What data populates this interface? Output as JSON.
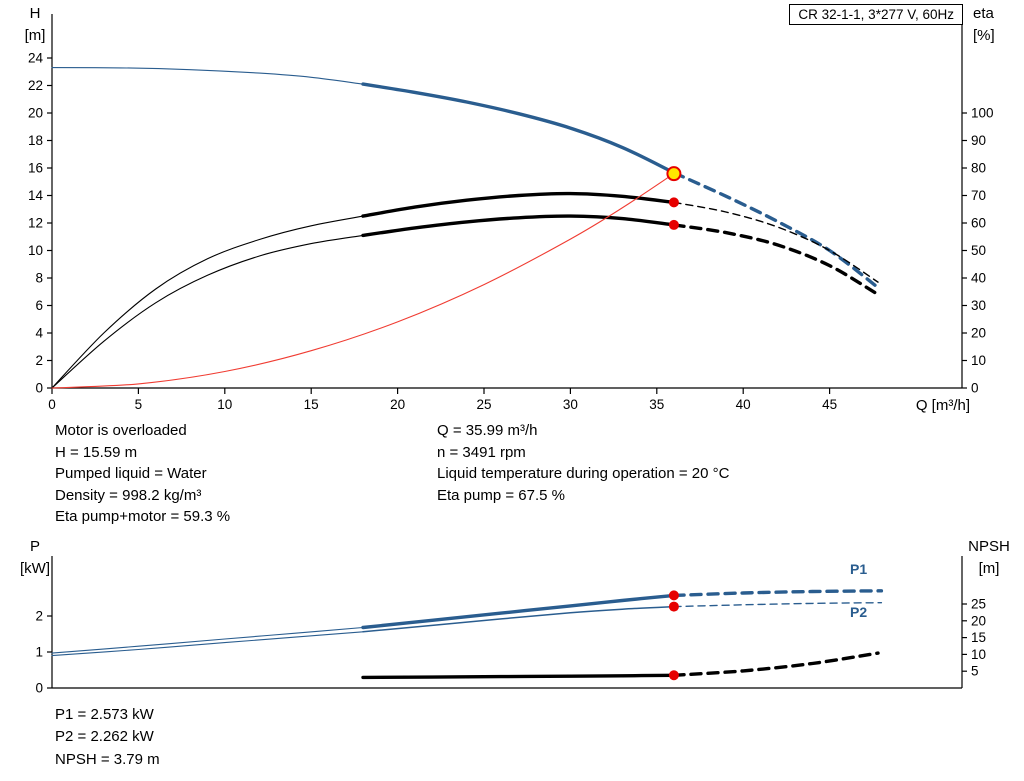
{
  "colors": {
    "pump_curve": "#2a5d8f",
    "eta_curve": "#000000",
    "system_curve": "#f03c32",
    "duty_fill": "#ffe600",
    "duty_ring": "#e60000",
    "dot": "#e60000",
    "axis": "#000000"
  },
  "info_top_left": [
    "Motor is overloaded",
    "H = 15.59 m",
    "Pumped liquid = Water",
    "Density = 998.2 kg/m³",
    "Eta pump+motor = 59.3 %"
  ],
  "info_top_right": [
    "Q = 35.99 m³/h",
    "n = 3491 rpm",
    "Liquid temperature during operation = 20 °C",
    "Eta pump = 67.5 %"
  ],
  "info_bottom": [
    "P1 = 2.573 kW",
    "P2 = 2.262 kW",
    "NPSH = 3.79 m"
  ],
  "chart_data": [
    {
      "name": "hq-eta-chart",
      "type": "line",
      "title": "CR 32-1-1, 3*277 V, 60Hz",
      "grid": false,
      "legend": false,
      "x_axis": {
        "label": "Q [m³/h]",
        "min": 0,
        "max": 52.6,
        "major_ticks": [
          0,
          5,
          10,
          15,
          20,
          25,
          30,
          35,
          40,
          45
        ]
      },
      "y_left": {
        "label": [
          "H",
          "[m]"
        ],
        "min": 0,
        "max": 24,
        "ticks": [
          0,
          2,
          4,
          6,
          8,
          10,
          12,
          14,
          16,
          18,
          20,
          22,
          24
        ]
      },
      "y_right": {
        "label": [
          "eta",
          "[%]"
        ],
        "min": 0,
        "max": 100,
        "ticks": [
          0,
          10,
          20,
          30,
          40,
          50,
          60,
          70,
          80,
          90,
          100
        ]
      },
      "series": [
        {
          "name": "head-curve",
          "axis": "left",
          "color": "#2a5d8f",
          "segments": [
            {
              "style": "thin",
              "points": [
                [
                  0,
                  23.3
                ],
                [
                  4,
                  23.28
                ],
                [
                  8,
                  23.15
                ],
                [
                  12,
                  22.9
                ],
                [
                  15,
                  22.6
                ],
                [
                  18,
                  22.1
                ]
              ]
            },
            {
              "style": "thick",
              "points": [
                [
                  18,
                  22.1
                ],
                [
                  21,
                  21.5
                ],
                [
                  24,
                  20.8
                ],
                [
                  27,
                  19.95
                ],
                [
                  30,
                  18.9
                ],
                [
                  33,
                  17.5
                ],
                [
                  36,
                  15.65
                ]
              ]
            },
            {
              "style": "thick-dashed",
              "points": [
                [
                  36,
                  15.65
                ],
                [
                  39,
                  13.95
                ],
                [
                  42,
                  12.1
                ],
                [
                  45,
                  10.0
                ],
                [
                  47.8,
                  7.3
                ]
              ]
            }
          ]
        },
        {
          "name": "eta-pump-curve",
          "axis": "right",
          "color": "#000000",
          "segments": [
            {
              "style": "thin",
              "points": [
                [
                  0,
                  0
                ],
                [
                  3,
                  20
                ],
                [
                  6,
                  36
                ],
                [
                  9,
                  47
                ],
                [
                  12,
                  54
                ],
                [
                  15,
                  59
                ],
                [
                  18,
                  62.5
                ]
              ]
            },
            {
              "style": "thick",
              "points": [
                [
                  18,
                  62.5
                ],
                [
                  21,
                  65.8
                ],
                [
                  24,
                  68.3
                ],
                [
                  27,
                  70.0
                ],
                [
                  30,
                  70.7
                ],
                [
                  33,
                  69.7
                ],
                [
                  36,
                  67.5
                ]
              ]
            },
            {
              "style": "thin-dashed",
              "points": [
                [
                  36,
                  67.5
                ],
                [
                  39,
                  64
                ],
                [
                  42,
                  58.5
                ],
                [
                  45,
                  50
                ],
                [
                  47.8,
                  38.5
                ]
              ]
            }
          ]
        },
        {
          "name": "eta-pump-motor-curve",
          "axis": "right",
          "color": "#000000",
          "segments": [
            {
              "style": "thin",
              "points": [
                [
                  0,
                  0
                ],
                [
                  3,
                  17
                ],
                [
                  6,
                  31
                ],
                [
                  9,
                  41
                ],
                [
                  12,
                  48
                ],
                [
                  15,
                  52.5
                ],
                [
                  18,
                  55.5
                ]
              ]
            },
            {
              "style": "thick",
              "points": [
                [
                  18,
                  55.5
                ],
                [
                  21,
                  58.2
                ],
                [
                  24,
                  60.4
                ],
                [
                  27,
                  61.9
                ],
                [
                  30,
                  62.5
                ],
                [
                  33,
                  61.6
                ],
                [
                  36,
                  59.3
                ]
              ]
            },
            {
              "style": "thick-dashed",
              "points": [
                [
                  36,
                  59.3
                ],
                [
                  39,
                  56.5
                ],
                [
                  42,
                  52
                ],
                [
                  45,
                  44.5
                ],
                [
                  47.8,
                  34
                ]
              ]
            }
          ]
        },
        {
          "name": "system-curve",
          "axis": "left",
          "color": "#f03c32",
          "segments": [
            {
              "style": "thin",
              "points": [
                [
                  0,
                  0
                ],
                [
                  5,
                  0.3
                ],
                [
                  10,
                  1.2
                ],
                [
                  15,
                  2.71
                ],
                [
                  20,
                  4.81
                ],
                [
                  25,
                  7.52
                ],
                [
                  30,
                  10.83
                ],
                [
                  33,
                  13.1
                ],
                [
                  35.99,
                  15.59
                ]
              ]
            }
          ]
        }
      ],
      "markers": [
        {
          "name": "duty-point",
          "axis": "left",
          "q": 35.99,
          "value": 15.59,
          "kind": "duty"
        },
        {
          "name": "eta-pump-point",
          "axis": "right",
          "q": 35.99,
          "value": 67.5,
          "kind": "dot"
        },
        {
          "name": "eta-total-point",
          "axis": "right",
          "q": 35.99,
          "value": 59.3,
          "kind": "dot"
        }
      ]
    },
    {
      "name": "power-npsh-chart",
      "type": "line",
      "grid": false,
      "legend": false,
      "x_axis": {
        "label": "",
        "min": 0,
        "max": 52.6,
        "major_ticks": []
      },
      "y_left": {
        "label": [
          "P",
          "[kW]"
        ],
        "min": 0,
        "max": 3.6,
        "ticks": [
          0,
          1,
          2
        ]
      },
      "y_right": {
        "label": [
          "NPSH",
          "[m]"
        ],
        "min": 0,
        "max": 39,
        "ticks": [
          5,
          10,
          15,
          20,
          25
        ]
      },
      "series": [
        {
          "name": "p1-curve",
          "axis": "left",
          "color": "#2a5d8f",
          "label": "P1",
          "segments": [
            {
              "style": "thin",
              "points": [
                [
                  0,
                  0.97
                ],
                [
                  5,
                  1.16
                ],
                [
                  10,
                  1.36
                ],
                [
                  14,
                  1.52
                ],
                [
                  18,
                  1.68
                ]
              ]
            },
            {
              "style": "thick",
              "points": [
                [
                  18,
                  1.68
                ],
                [
                  22,
                  1.88
                ],
                [
                  26,
                  2.08
                ],
                [
                  30,
                  2.28
                ],
                [
                  33,
                  2.43
                ],
                [
                  36,
                  2.573
                ]
              ]
            },
            {
              "style": "thick-dashed",
              "points": [
                [
                  36,
                  2.573
                ],
                [
                  40,
                  2.64
                ],
                [
                  44,
                  2.68
                ],
                [
                  48,
                  2.7
                ]
              ]
            }
          ]
        },
        {
          "name": "p2-curve",
          "axis": "left",
          "color": "#2a5d8f",
          "label": "P2",
          "segments": [
            {
              "style": "thin",
              "points": [
                [
                  0,
                  0.9
                ],
                [
                  5,
                  1.07
                ],
                [
                  10,
                  1.26
                ],
                [
                  14,
                  1.41
                ],
                [
                  18,
                  1.56
                ]
              ]
            },
            {
              "style": "thin2",
              "points": [
                [
                  18,
                  1.56
                ],
                [
                  22,
                  1.74
                ],
                [
                  26,
                  1.92
                ],
                [
                  30,
                  2.09
                ],
                [
                  33,
                  2.19
                ],
                [
                  36,
                  2.262
                ]
              ]
            },
            {
              "style": "thin-dashed",
              "points": [
                [
                  36,
                  2.262
                ],
                [
                  40,
                  2.31
                ],
                [
                  44,
                  2.35
                ],
                [
                  48,
                  2.37
                ]
              ]
            }
          ]
        },
        {
          "name": "npsh-curve",
          "axis": "right",
          "color": "#000000",
          "segments": [
            {
              "style": "thick",
              "points": [
                [
                  18,
                  3.15
                ],
                [
                  22,
                  3.25
                ],
                [
                  26,
                  3.38
                ],
                [
                  30,
                  3.52
                ],
                [
                  33,
                  3.64
                ],
                [
                  36,
                  3.79
                ]
              ]
            },
            {
              "style": "thick-dashed",
              "points": [
                [
                  36,
                  3.79
                ],
                [
                  40,
                  5.1
                ],
                [
                  44,
                  7.3
                ],
                [
                  47.8,
                  10.4
                ]
              ]
            }
          ]
        }
      ],
      "markers": [
        {
          "name": "p1-point",
          "axis": "left",
          "q": 35.99,
          "value": 2.573,
          "kind": "dot"
        },
        {
          "name": "p2-point",
          "axis": "left",
          "q": 35.99,
          "value": 2.262,
          "kind": "dot"
        },
        {
          "name": "npsh-point",
          "axis": "right",
          "q": 35.99,
          "value": 3.79,
          "kind": "dot"
        }
      ]
    }
  ]
}
